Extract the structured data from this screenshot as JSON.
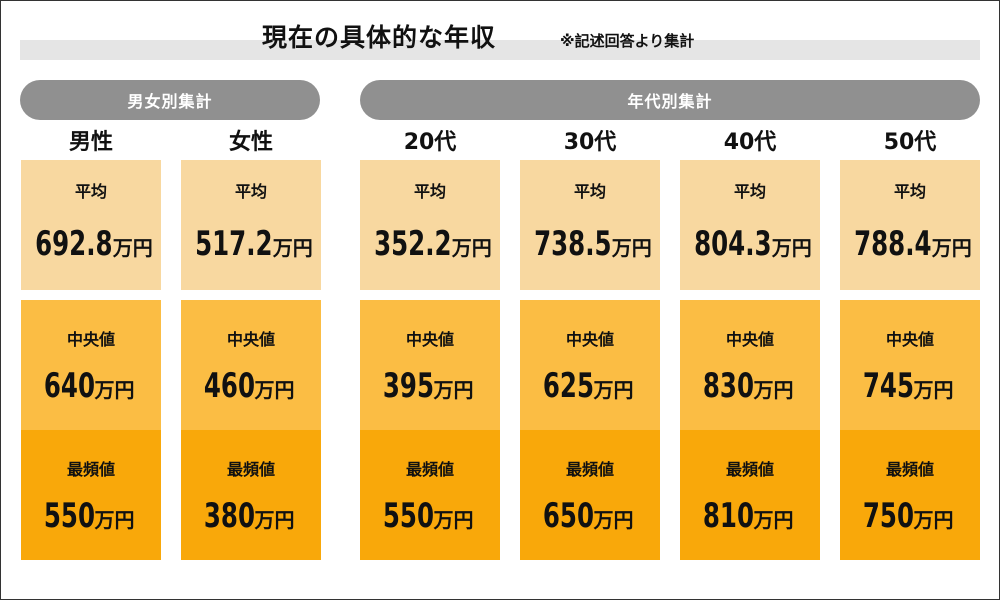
{
  "title": "現在の具体的な年収",
  "note": "※記述回答より集計",
  "groups": {
    "gender": "男女別集計",
    "age": "年代別集計"
  },
  "row_labels": {
    "avg": "平均",
    "median": "中央値",
    "mode": "最頻値"
  },
  "unit": "万円",
  "columns": [
    {
      "label": "男性",
      "avg": "692.8",
      "median": "640",
      "mode": "550"
    },
    {
      "label": "女性",
      "avg": "517.2",
      "median": "460",
      "mode": "380"
    },
    {
      "label": "20代",
      "avg": "352.2",
      "median": "395",
      "mode": "550"
    },
    {
      "label": "30代",
      "avg": "738.5",
      "median": "625",
      "mode": "650"
    },
    {
      "label": "40代",
      "avg": "804.3",
      "median": "830",
      "mode": "810"
    },
    {
      "label": "50代",
      "avg": "788.4",
      "median": "745",
      "mode": "750"
    }
  ],
  "colors": {
    "avg": "#f8d8a0",
    "median": "#fbbd44",
    "mode": "#f9a80a",
    "pill": "#909090"
  }
}
